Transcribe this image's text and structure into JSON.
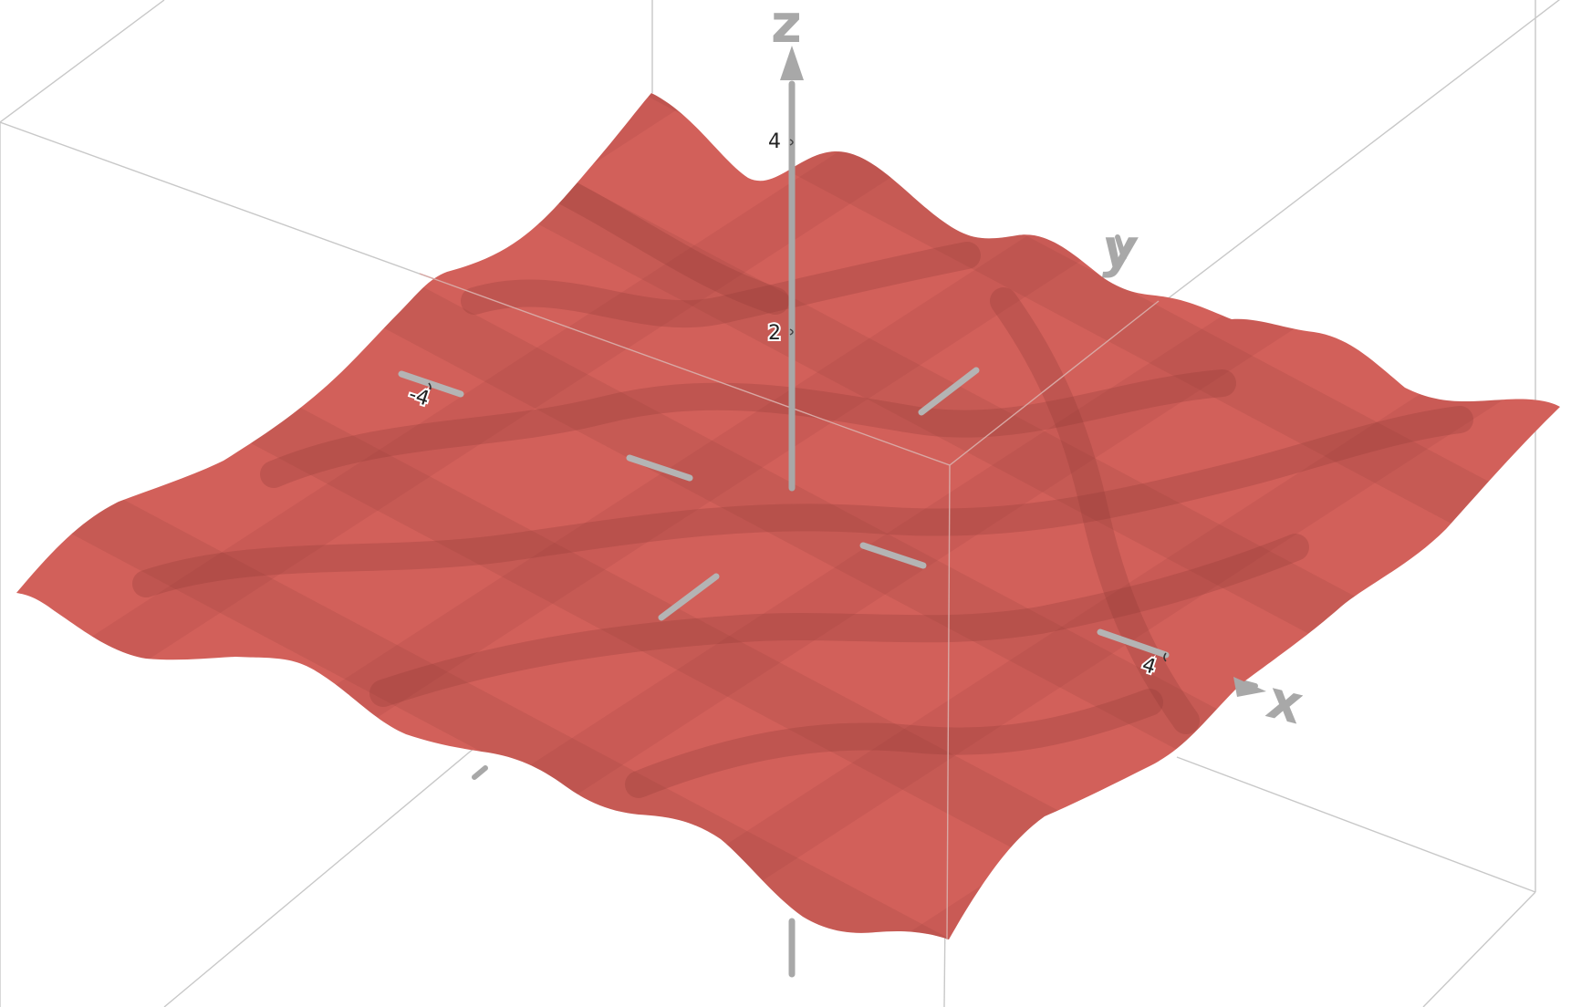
{
  "graph": {
    "axes": {
      "x_label": "x",
      "y_label": "y",
      "z_label": "z"
    },
    "z_ticks": [
      "2",
      "4"
    ],
    "x_tick_label": "4",
    "y_tick_label": "-4",
    "colors": {
      "surface": "#d2605a",
      "surface_shadow": "#9e4640",
      "axis": "#a8a8a8",
      "bounding_box": "#c8c8c8"
    }
  }
}
